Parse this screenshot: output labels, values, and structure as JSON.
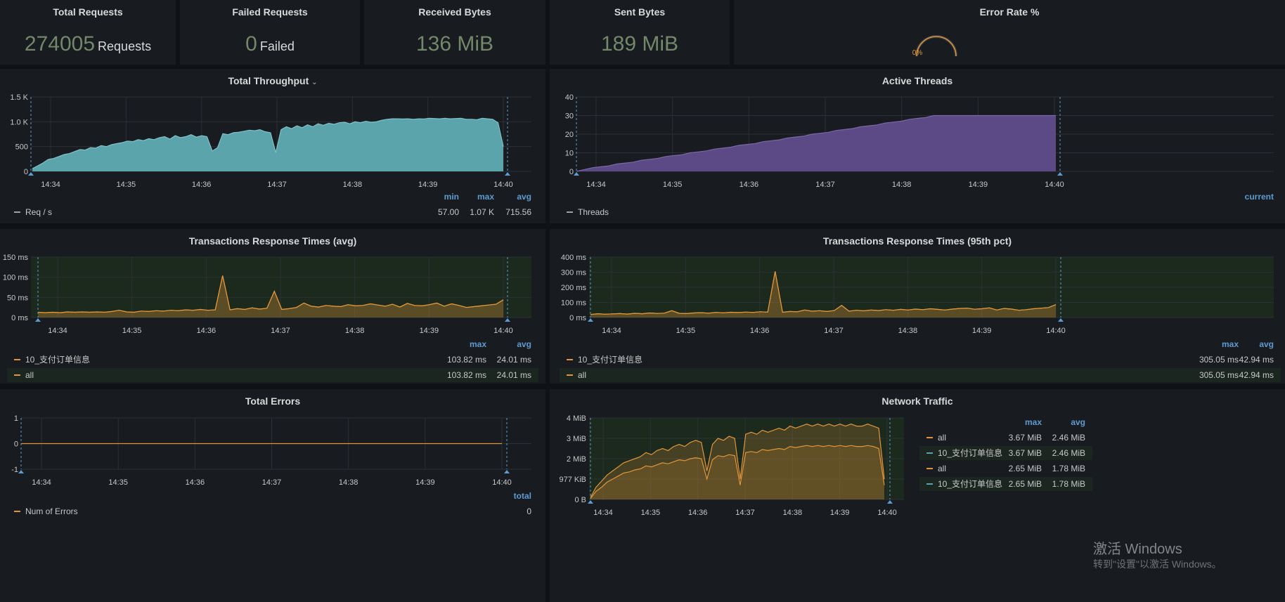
{
  "stats": {
    "total_requests": {
      "title": "Total Requests",
      "value": "274005",
      "unit": "Requests"
    },
    "failed_requests": {
      "title": "Failed Requests",
      "value": "0",
      "unit": "Failed"
    },
    "received_bytes": {
      "title": "Received Bytes",
      "value": "136 MiB"
    },
    "sent_bytes": {
      "title": "Sent Bytes",
      "value": "189 MiB"
    },
    "error_rate": {
      "title": "Error Rate %",
      "value": "0%",
      "level": 0
    }
  },
  "time_ticks": [
    "14:34",
    "14:35",
    "14:36",
    "14:37",
    "14:38",
    "14:39",
    "14:40"
  ],
  "throughput": {
    "title": "Total Throughput",
    "y_ticks": [
      "1.5 K",
      "1.0 K",
      "500",
      "0"
    ],
    "legend_headers": [
      "min",
      "max",
      "avg"
    ],
    "legend": [
      {
        "name": "Req / s",
        "values": [
          "57.00",
          "1.07 K",
          "715.56"
        ]
      }
    ],
    "color": "#5ba4ab"
  },
  "threads": {
    "title": "Active Threads",
    "y_ticks": [
      "40",
      "30",
      "20",
      "10",
      "0"
    ],
    "legend_headers": [
      "current"
    ],
    "legend": [
      {
        "name": "Threads",
        "values": []
      }
    ],
    "color": "#5b4a86"
  },
  "resp_avg": {
    "title": "Transactions Response Times (avg)",
    "y_ticks": [
      "150 ms",
      "100 ms",
      "50 ms",
      "0 ms"
    ],
    "legend_headers": [
      "max",
      "avg"
    ],
    "legend": [
      {
        "name": "10_支付订单信息",
        "values": [
          "103.82 ms",
          "24.01 ms"
        ]
      },
      {
        "name": "all",
        "values": [
          "103.82 ms",
          "24.01 ms"
        ]
      }
    ],
    "color": "#e0953a"
  },
  "resp_95": {
    "title": "Transactions Response Times (95th pct)",
    "y_ticks": [
      "400 ms",
      "300 ms",
      "200 ms",
      "100 ms",
      "0 ms"
    ],
    "legend_headers": [
      "max",
      "avg"
    ],
    "legend": [
      {
        "name": "10_支付订单信息",
        "values": [
          "305.05 ms",
          "42.94 ms"
        ]
      },
      {
        "name": "all",
        "values": [
          "305.05 ms",
          "42.94 ms"
        ]
      }
    ],
    "color": "#e0953a"
  },
  "errors": {
    "title": "Total Errors",
    "y_ticks": [
      "1",
      "0",
      "-1"
    ],
    "legend_headers": [
      "total"
    ],
    "legend": [
      {
        "name": "Num of Errors",
        "values": [
          "0"
        ]
      }
    ],
    "color": "#e0953a"
  },
  "network": {
    "title": "Network Traffic",
    "y_ticks": [
      "4 MiB",
      "3 MiB",
      "2 MiB",
      "977 KiB",
      "0 B"
    ],
    "legend_headers": [
      "max",
      "avg"
    ],
    "legend": [
      {
        "name": "all",
        "values": [
          "3.67 MiB",
          "2.46 MiB"
        ],
        "color": "#e0953a"
      },
      {
        "name": "10_支付订单信息",
        "values": [
          "3.67 MiB",
          "2.46 MiB"
        ],
        "color": "#5ba4ab"
      },
      {
        "name": "all",
        "values": [
          "2.65 MiB",
          "1.78 MiB"
        ],
        "color": "#e0953a"
      },
      {
        "name": "10_支付订单信息",
        "values": [
          "2.65 MiB",
          "1.78 MiB"
        ],
        "color": "#5ba4ab"
      }
    ]
  },
  "watermark": {
    "line1": "激活 Windows",
    "line2": "转到\"设置\"以激活 Windows。"
  },
  "chart_data": [
    {
      "type": "area",
      "title": "Total Throughput",
      "ylim": [
        0,
        1500
      ],
      "series": [
        {
          "name": "Req / s",
          "values": [
            57,
            110,
            170,
            240,
            260,
            300,
            340,
            360,
            400,
            440,
            430,
            480,
            470,
            520,
            500,
            540,
            560,
            580,
            610,
            600,
            640,
            620,
            660,
            640,
            680,
            700,
            650,
            720,
            680,
            700,
            740,
            690,
            720,
            700,
            410,
            480,
            760,
            740,
            780,
            790,
            810,
            830,
            820,
            840,
            800,
            780,
            380,
            840,
            900,
            860,
            920,
            880,
            940,
            900,
            960,
            930,
            970,
            950,
            980,
            990,
            960,
            1000,
            980,
            1010,
            990,
            1000,
            1030,
            1050,
            1060,
            1060,
            1055,
            1060,
            1050,
            1060,
            1055,
            1070,
            1065,
            1060,
            1070,
            1060,
            1065,
            1070,
            1050,
            1050,
            1040,
            1070,
            1060,
            1050,
            980,
            500
          ]
        }
      ]
    },
    {
      "type": "area",
      "title": "Active Threads",
      "ylim": [
        0,
        40
      ],
      "series": [
        {
          "name": "Threads",
          "values": [
            0,
            1,
            2,
            2.5,
            3,
            4,
            4.5,
            5,
            6,
            6.5,
            7,
            8,
            8.5,
            9,
            10,
            10.5,
            11,
            12,
            12.5,
            13,
            14,
            14.5,
            15,
            16,
            16.5,
            17,
            18,
            18.5,
            19,
            20,
            20.5,
            21,
            22,
            22.5,
            23,
            24,
            24.5,
            25,
            26,
            26.5,
            27,
            28,
            28.5,
            29,
            30,
            30,
            30,
            30,
            30,
            30,
            30,
            30,
            30,
            30,
            30,
            30,
            30,
            30,
            30,
            30
          ]
        }
      ]
    },
    {
      "type": "line",
      "title": "Transactions Response Times (avg)",
      "ylim": [
        0,
        150
      ],
      "series": [
        {
          "name": "10_支付订单信息",
          "values": [
            13,
            12,
            13,
            12,
            14,
            13,
            14,
            13,
            14,
            13,
            15,
            18,
            14,
            13,
            16,
            15,
            17,
            16,
            18,
            17,
            19,
            18,
            20,
            18,
            19,
            104,
            19,
            22,
            20,
            24,
            21,
            23,
            65,
            20,
            22,
            25,
            36,
            28,
            26,
            30,
            28,
            27,
            32,
            29,
            30,
            34,
            31,
            28,
            33,
            26,
            35,
            30,
            29,
            32,
            36,
            28,
            34,
            30,
            25,
            27,
            29,
            31,
            33,
            44
          ]
        },
        {
          "name": "all",
          "values": [
            13,
            12,
            13,
            12,
            14,
            13,
            14,
            13,
            14,
            13,
            15,
            18,
            14,
            13,
            16,
            15,
            17,
            16,
            18,
            17,
            19,
            18,
            20,
            18,
            19,
            104,
            19,
            22,
            20,
            24,
            21,
            23,
            65,
            20,
            22,
            25,
            36,
            28,
            26,
            30,
            28,
            27,
            32,
            29,
            30,
            34,
            31,
            28,
            33,
            26,
            35,
            30,
            29,
            32,
            36,
            28,
            34,
            30,
            25,
            27,
            29,
            31,
            33,
            44
          ]
        }
      ]
    },
    {
      "type": "line",
      "title": "Transactions Response Times (95th pct)",
      "ylim": [
        0,
        400
      ],
      "series": [
        {
          "name": "10_支付订单信息",
          "values": [
            20,
            25,
            22,
            24,
            26,
            23,
            28,
            25,
            30,
            27,
            29,
            45,
            28,
            26,
            30,
            32,
            29,
            34,
            31,
            35,
            33,
            36,
            34,
            38,
            36,
            305,
            35,
            40,
            38,
            50,
            42,
            45,
            40,
            46,
            80,
            42,
            48,
            44,
            50,
            46,
            52,
            48,
            54,
            50,
            56,
            52,
            58,
            54,
            50,
            56,
            60,
            62,
            55,
            58,
            64,
            50,
            60,
            56,
            48,
            52,
            58,
            62,
            66,
            85
          ]
        },
        {
          "name": "all",
          "values": [
            20,
            25,
            22,
            24,
            26,
            23,
            28,
            25,
            30,
            27,
            29,
            45,
            28,
            26,
            30,
            32,
            29,
            34,
            31,
            35,
            33,
            36,
            34,
            38,
            36,
            305,
            35,
            40,
            38,
            50,
            42,
            45,
            40,
            46,
            80,
            42,
            48,
            44,
            50,
            46,
            52,
            48,
            54,
            50,
            56,
            52,
            58,
            54,
            50,
            56,
            60,
            62,
            55,
            58,
            64,
            50,
            60,
            56,
            48,
            52,
            58,
            62,
            66,
            85
          ]
        }
      ]
    },
    {
      "type": "line",
      "title": "Total Errors",
      "ylim": [
        -1,
        1
      ],
      "series": [
        {
          "name": "Num of Errors",
          "values": [
            0,
            0,
            0,
            0,
            0,
            0,
            0,
            0,
            0,
            0
          ]
        }
      ]
    },
    {
      "type": "area",
      "title": "Network Traffic",
      "ylim": [
        0,
        4
      ],
      "series": [
        {
          "name": "all",
          "values": [
            0.1,
            0.6,
            0.9,
            1.2,
            1.4,
            1.6,
            1.8,
            1.9,
            2.0,
            2.1,
            2.3,
            2.2,
            2.4,
            2.5,
            2.4,
            2.6,
            2.7,
            2.6,
            2.8,
            2.9,
            2.8,
            1.4,
            2.7,
            3.0,
            2.9,
            3.1,
            3.0,
            1.0,
            3.2,
            3.3,
            3.2,
            3.4,
            3.3,
            3.4,
            3.5,
            3.4,
            3.6,
            3.5,
            3.6,
            3.7,
            3.6,
            3.7,
            3.6,
            3.7,
            3.6,
            3.7,
            3.6,
            3.7,
            3.6,
            3.6,
            3.7,
            3.6,
            3.5,
            1.0
          ]
        },
        {
          "name": "all",
          "values": [
            0.05,
            0.4,
            0.6,
            0.85,
            1.0,
            1.15,
            1.3,
            1.35,
            1.45,
            1.5,
            1.65,
            1.6,
            1.7,
            1.8,
            1.75,
            1.85,
            1.95,
            1.9,
            2.0,
            2.05,
            2.0,
            1.0,
            1.95,
            2.15,
            2.1,
            2.2,
            2.15,
            0.7,
            2.3,
            2.35,
            2.3,
            2.45,
            2.4,
            2.45,
            2.5,
            2.45,
            2.6,
            2.55,
            2.6,
            2.65,
            2.6,
            2.65,
            2.6,
            2.65,
            2.6,
            2.65,
            2.6,
            2.65,
            2.6,
            2.6,
            2.65,
            2.6,
            2.5,
            0.7
          ]
        }
      ]
    }
  ]
}
